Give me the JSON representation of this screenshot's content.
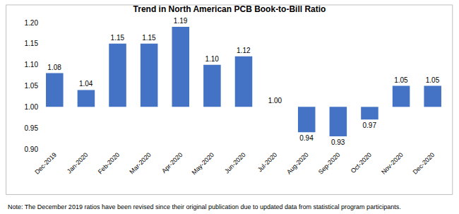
{
  "chart_data": {
    "type": "bar",
    "title": "Trend in North American PCB Book-to-Bill Ratio",
    "categories": [
      "Dec-2019",
      "Jan-2020",
      "Feb-2020",
      "Mar-2020",
      "Apr-2020",
      "May-2020",
      "Jun-2020",
      "Jul-2020",
      "Aug-2020",
      "Sep-2020",
      "Oct-2020",
      "Nov-2020",
      "Dec-2020"
    ],
    "values": [
      1.08,
      1.04,
      1.15,
      1.15,
      1.19,
      1.1,
      1.12,
      1.0,
      0.94,
      0.93,
      0.97,
      1.05,
      1.05
    ],
    "value_labels": [
      "1.08",
      "1.04",
      "1.15",
      "1.15",
      "1.19",
      "1.10",
      "1.12",
      "1.00",
      "0.94",
      "0.93",
      "0.97",
      "1.05",
      "1.05"
    ],
    "base": 1,
    "color": "#4472c4",
    "data_labels": true,
    "ylim": [
      0.9,
      1.2
    ],
    "yticks": [
      {
        "value": 0.9,
        "label": "0.90"
      },
      {
        "value": 0.95,
        "label": "0.95"
      },
      {
        "value": 1,
        "label": "1.00"
      },
      {
        "value": 1.05,
        "label": "1.05"
      },
      {
        "value": 1.1,
        "label": "1.10"
      },
      {
        "value": 1.15,
        "label": "1.15"
      },
      {
        "value": 1.2,
        "label": "1.20"
      }
    ],
    "grid": false,
    "note": "Note: The December 2019 ratios have been revised since their original publication due to updated data from statistical program participants."
  }
}
